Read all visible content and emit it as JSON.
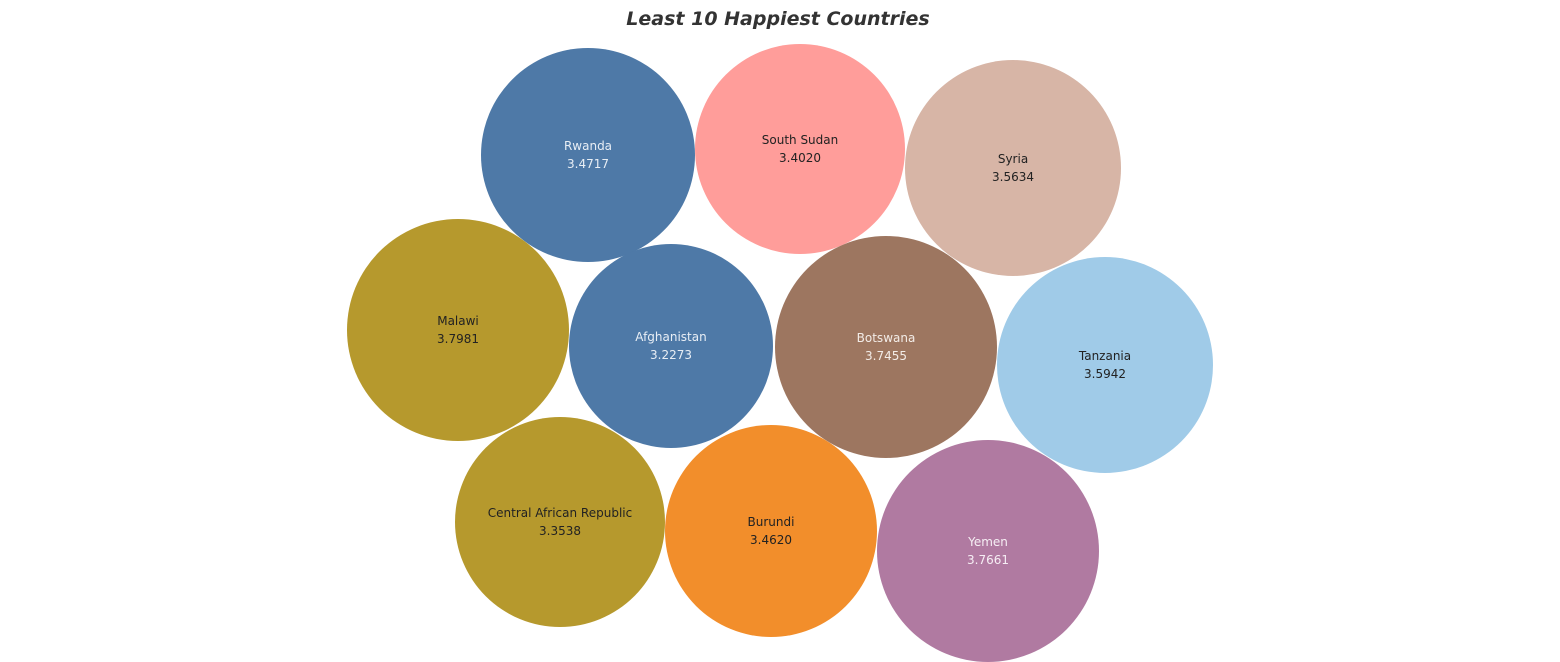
{
  "chart_data": {
    "type": "bubble",
    "title": "Least 10 Happiest Countries",
    "size_measure": "happiness score",
    "items": [
      {
        "name": "Rwanda",
        "value": "3.4717",
        "color": "#4e79a7",
        "label_color": "#e8eef5"
      },
      {
        "name": "South Sudan",
        "value": "3.4020",
        "color": "#ff9d9a",
        "label_color": "#222222"
      },
      {
        "name": "Syria",
        "value": "3.5634",
        "color": "#d7b5a6",
        "label_color": "#222222"
      },
      {
        "name": "Malawi",
        "value": "3.7981",
        "color": "#b6992d",
        "label_color": "#222222"
      },
      {
        "name": "Afghanistan",
        "value": "3.2273",
        "color": "#4e79a7",
        "label_color": "#e8eef5"
      },
      {
        "name": "Botswana",
        "value": "3.7455",
        "color": "#9d7660",
        "label_color": "#f3ece7"
      },
      {
        "name": "Tanzania",
        "value": "3.5942",
        "color": "#a0cbe8",
        "label_color": "#222222"
      },
      {
        "name": "Central African Republic",
        "value": "3.3538",
        "color": "#b6992d",
        "label_color": "#222222"
      },
      {
        "name": "Burundi",
        "value": "3.4620",
        "color": "#f28e2b",
        "label_color": "#222222"
      },
      {
        "name": "Yemen",
        "value": "3.7661",
        "color": "#b07aa1",
        "label_color": "#f6eef4"
      }
    ]
  }
}
